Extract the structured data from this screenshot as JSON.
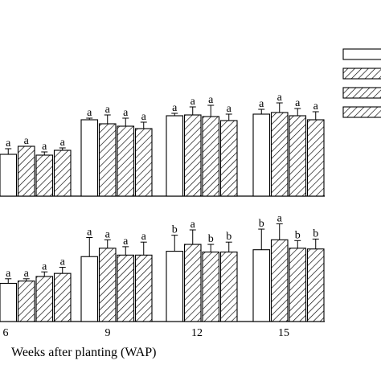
{
  "chart_data": {
    "type": "bar",
    "xlabel": "Weeks after planting (WAP)",
    "categories": [
      "6",
      "9",
      "12",
      "15"
    ],
    "series_patterns": [
      "white",
      "hatch",
      "hatch",
      "hatch"
    ],
    "legend_placement": "top-right",
    "panels": [
      {
        "name": "top",
        "ylim": [
          0,
          100
        ],
        "values": [
          [
            52,
            95,
            100,
            102
          ],
          [
            62,
            90,
            101,
            104
          ],
          [
            51,
            87,
            99,
            100
          ],
          [
            57,
            84,
            94,
            95
          ]
        ],
        "errors": [
          [
            7,
            2,
            3,
            6
          ],
          [
            0,
            11,
            10,
            12
          ],
          [
            4,
            10,
            14,
            9
          ],
          [
            3,
            8,
            8,
            10
          ]
        ],
        "letters": [
          [
            "a",
            "a",
            "a",
            "a"
          ],
          [
            "a",
            "a",
            "a",
            "a"
          ],
          [
            "a",
            "a",
            "a",
            "a"
          ],
          [
            "a",
            "a",
            "a",
            "a"
          ]
        ]
      },
      {
        "name": "bottom",
        "ylim": [
          0,
          100
        ],
        "values": [
          [
            50,
            85,
            92,
            94
          ],
          [
            53,
            96,
            101,
            107
          ],
          [
            59,
            87,
            91,
            96
          ],
          [
            63,
            87,
            91,
            95
          ]
        ],
        "errors": [
          [
            6,
            25,
            21,
            27
          ],
          [
            3,
            11,
            19,
            21
          ],
          [
            6,
            11,
            10,
            10
          ],
          [
            8,
            17,
            13,
            13
          ]
        ],
        "letters": [
          [
            "a",
            "a",
            "b",
            "b"
          ],
          [
            "a",
            "a",
            "a",
            "a"
          ],
          [
            "a",
            "a",
            "b",
            "b"
          ],
          [
            "a",
            "a",
            "b",
            "b"
          ]
        ]
      }
    ]
  }
}
